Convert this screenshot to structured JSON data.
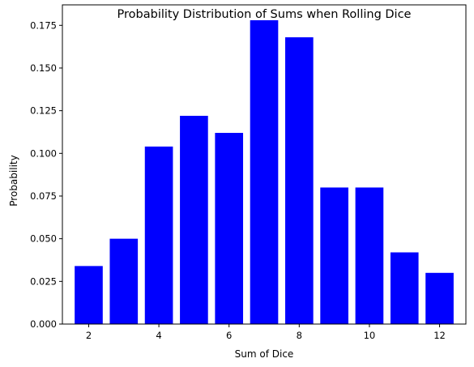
{
  "chart_data": {
    "type": "bar",
    "title": "Probability Distribution of Sums when Rolling Dice",
    "xlabel": "Sum of Dice",
    "ylabel": "Probability",
    "categories": [
      2,
      3,
      4,
      5,
      6,
      7,
      8,
      9,
      10,
      11,
      12
    ],
    "values": [
      0.034,
      0.05,
      0.104,
      0.122,
      0.112,
      0.178,
      0.168,
      0.08,
      0.08,
      0.042,
      0.03
    ],
    "xlim": [
      1.25,
      12.75
    ],
    "ylim": [
      0,
      0.187
    ],
    "xticks": [
      2,
      4,
      6,
      8,
      10,
      12
    ],
    "xtick_labels": [
      "2",
      "4",
      "6",
      "8",
      "10",
      "12"
    ],
    "yticks": [
      0,
      0.025,
      0.05,
      0.075,
      0.1,
      0.125,
      0.15,
      0.175
    ],
    "ytick_labels": [
      "0.000",
      "0.025",
      "0.050",
      "0.075",
      "0.100",
      "0.125",
      "0.150",
      "0.175"
    ],
    "bar_color": "#0000ff",
    "grid": false
  }
}
